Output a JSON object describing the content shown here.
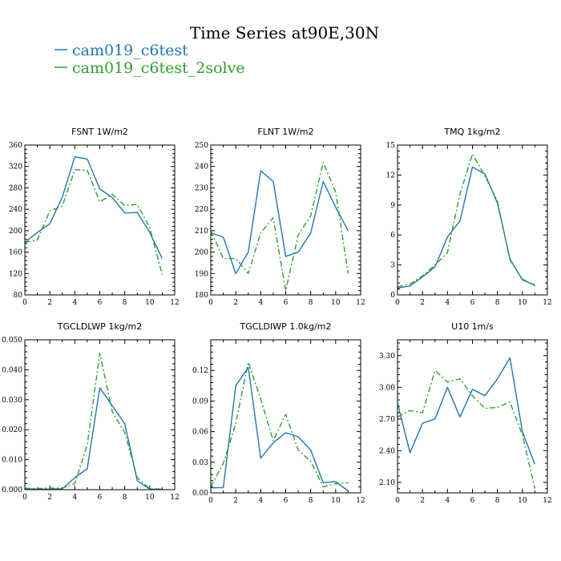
{
  "figure": {
    "title": "Time Series at90E,30N"
  },
  "legend": [
    {
      "label": "cam019_c6test",
      "color": "#1f77b4",
      "dash": "solid"
    },
    {
      "label": "cam019_c6test_2solve",
      "color": "#2ca02c",
      "dash": "dashdot"
    }
  ],
  "chart_data": [
    {
      "type": "line",
      "title": "FSNT   1W/m2",
      "xlim": [
        0,
        12
      ],
      "xticks": [
        0,
        2,
        4,
        6,
        8,
        10,
        12
      ],
      "ylim": [
        80,
        360
      ],
      "yticks": [
        80,
        120,
        160,
        200,
        240,
        280,
        320,
        360
      ],
      "ytick_labels": [
        "80",
        "120",
        "160",
        "200",
        "240",
        "280",
        "320",
        "360"
      ],
      "x": [
        0,
        1,
        2,
        3,
        4,
        5,
        6,
        7,
        8,
        9,
        10,
        11
      ],
      "series": [
        {
          "name": "cam019_c6test",
          "values": [
            178,
            197,
            213,
            263,
            338,
            334,
            278,
            262,
            233,
            234,
            197,
            148
          ]
        },
        {
          "name": "cam019_c6test_2solve",
          "values": [
            178,
            183,
            237,
            246,
            314,
            313,
            254,
            268,
            247,
            249,
            206,
            118
          ]
        }
      ]
    },
    {
      "type": "line",
      "title": "FLNT   1W/m2",
      "xlim": [
        0,
        12
      ],
      "xticks": [
        0,
        2,
        4,
        6,
        8,
        10,
        12
      ],
      "ylim": [
        180,
        250
      ],
      "yticks": [
        180,
        190,
        200,
        210,
        220,
        230,
        240,
        250
      ],
      "ytick_labels": [
        "180",
        "190",
        "200",
        "210",
        "220",
        "230",
        "240",
        "250"
      ],
      "x": [
        0,
        1,
        2,
        3,
        4,
        5,
        6,
        7,
        8,
        9,
        10,
        11
      ],
      "series": [
        {
          "name": "cam019_c6test",
          "values": [
            209,
            207,
            190,
            200,
            238,
            233,
            198,
            200,
            209,
            233,
            221,
            210
          ]
        },
        {
          "name": "cam019_c6test_2solve",
          "values": [
            210,
            197,
            197,
            190,
            209,
            216,
            182,
            208,
            217,
            242,
            228,
            190
          ]
        }
      ]
    },
    {
      "type": "line",
      "title": "TMQ   1kg/m2",
      "xlim": [
        0,
        12
      ],
      "xticks": [
        0,
        2,
        4,
        6,
        8,
        10,
        12
      ],
      "ylim": [
        0,
        15
      ],
      "yticks": [
        0,
        3,
        6,
        9,
        12,
        15
      ],
      "ytick_labels": [
        "0",
        "3",
        "6",
        "9",
        "12",
        "15"
      ],
      "x": [
        0,
        1,
        2,
        3,
        4,
        5,
        6,
        7,
        8,
        9,
        10,
        11
      ],
      "series": [
        {
          "name": "cam019_c6test",
          "values": [
            0.7,
            0.9,
            1.8,
            2.8,
            5.8,
            7.4,
            12.8,
            12.1,
            9.2,
            3.6,
            1.5,
            1.0
          ]
        },
        {
          "name": "cam019_c6test_2solve",
          "values": [
            0.8,
            1.1,
            1.9,
            3.0,
            4.2,
            10.1,
            14.1,
            11.9,
            9.4,
            3.5,
            1.6,
            0.9
          ]
        }
      ]
    },
    {
      "type": "line",
      "title": "TGCLDLWP   1kg/m2",
      "xlim": [
        0,
        12
      ],
      "xticks": [
        0,
        2,
        4,
        6,
        8,
        10,
        12
      ],
      "ylim": [
        0,
        0.05
      ],
      "yticks": [
        0,
        0.01,
        0.02,
        0.03,
        0.04,
        0.05
      ],
      "ytick_labels": [
        "0.000",
        "0.010",
        "0.020",
        "0.030",
        "0.040",
        "0.050"
      ],
      "x": [
        0,
        1,
        2,
        3,
        4,
        5,
        6,
        7,
        8,
        9,
        10,
        11
      ],
      "series": [
        {
          "name": "cam019_c6test",
          "values": [
            0.0003,
            0.0002,
            0.0002,
            0.0003,
            0.004,
            0.007,
            0.034,
            0.028,
            0.022,
            0.003,
            0.0002,
            0.0001
          ]
        },
        {
          "name": "cam019_c6test_2solve",
          "values": [
            0.0004,
            0.0004,
            0.0005,
            0.0005,
            0.002,
            0.015,
            0.0455,
            0.026,
            0.019,
            0.004,
            0.0003,
            0.0002
          ]
        }
      ]
    },
    {
      "type": "line",
      "title": "TGCLDIWP   1.0kg/m2",
      "xlim": [
        0,
        12
      ],
      "xticks": [
        0,
        2,
        4,
        6,
        8,
        10,
        12
      ],
      "ylim": [
        0,
        0.15
      ],
      "yticks": [
        0,
        0.03,
        0.06,
        0.09,
        0.12
      ],
      "ytick_labels": [
        "0.00",
        "0.03",
        "0.06",
        "0.09",
        "0.12"
      ],
      "x": [
        0,
        1,
        2,
        3,
        4,
        5,
        6,
        7,
        8,
        9,
        10,
        11
      ],
      "series": [
        {
          "name": "cam019_c6test",
          "values": [
            0.005,
            0.005,
            0.105,
            0.123,
            0.034,
            0.049,
            0.059,
            0.055,
            0.042,
            0.01,
            0.011,
            0.002
          ]
        },
        {
          "name": "cam019_c6test_2solve",
          "values": [
            0.006,
            0.029,
            0.068,
            0.128,
            0.092,
            0.051,
            0.077,
            0.042,
            0.031,
            0.006,
            0.009,
            0.01
          ]
        }
      ]
    },
    {
      "type": "line",
      "title": "U10   1m/s",
      "xlim": [
        0,
        12
      ],
      "xticks": [
        0,
        2,
        4,
        6,
        8,
        10,
        12
      ],
      "ylim": [
        2.0,
        3.45
      ],
      "yticks": [
        2.1,
        2.4,
        2.7,
        3.0,
        3.3
      ],
      "ytick_labels": [
        "2.10",
        "2.40",
        "2.70",
        "3.00",
        "3.30"
      ],
      "x": [
        0,
        1,
        2,
        3,
        4,
        5,
        6,
        7,
        8,
        9,
        10,
        11
      ],
      "series": [
        {
          "name": "cam019_c6test",
          "values": [
            2.85,
            2.38,
            2.66,
            2.7,
            3.0,
            2.72,
            2.98,
            2.92,
            3.08,
            3.28,
            2.58,
            2.27
          ]
        },
        {
          "name": "cam019_c6test_2solve",
          "values": [
            2.72,
            2.78,
            2.76,
            3.16,
            3.05,
            3.08,
            2.92,
            2.8,
            2.81,
            2.86,
            2.55,
            2.04
          ]
        }
      ]
    }
  ]
}
